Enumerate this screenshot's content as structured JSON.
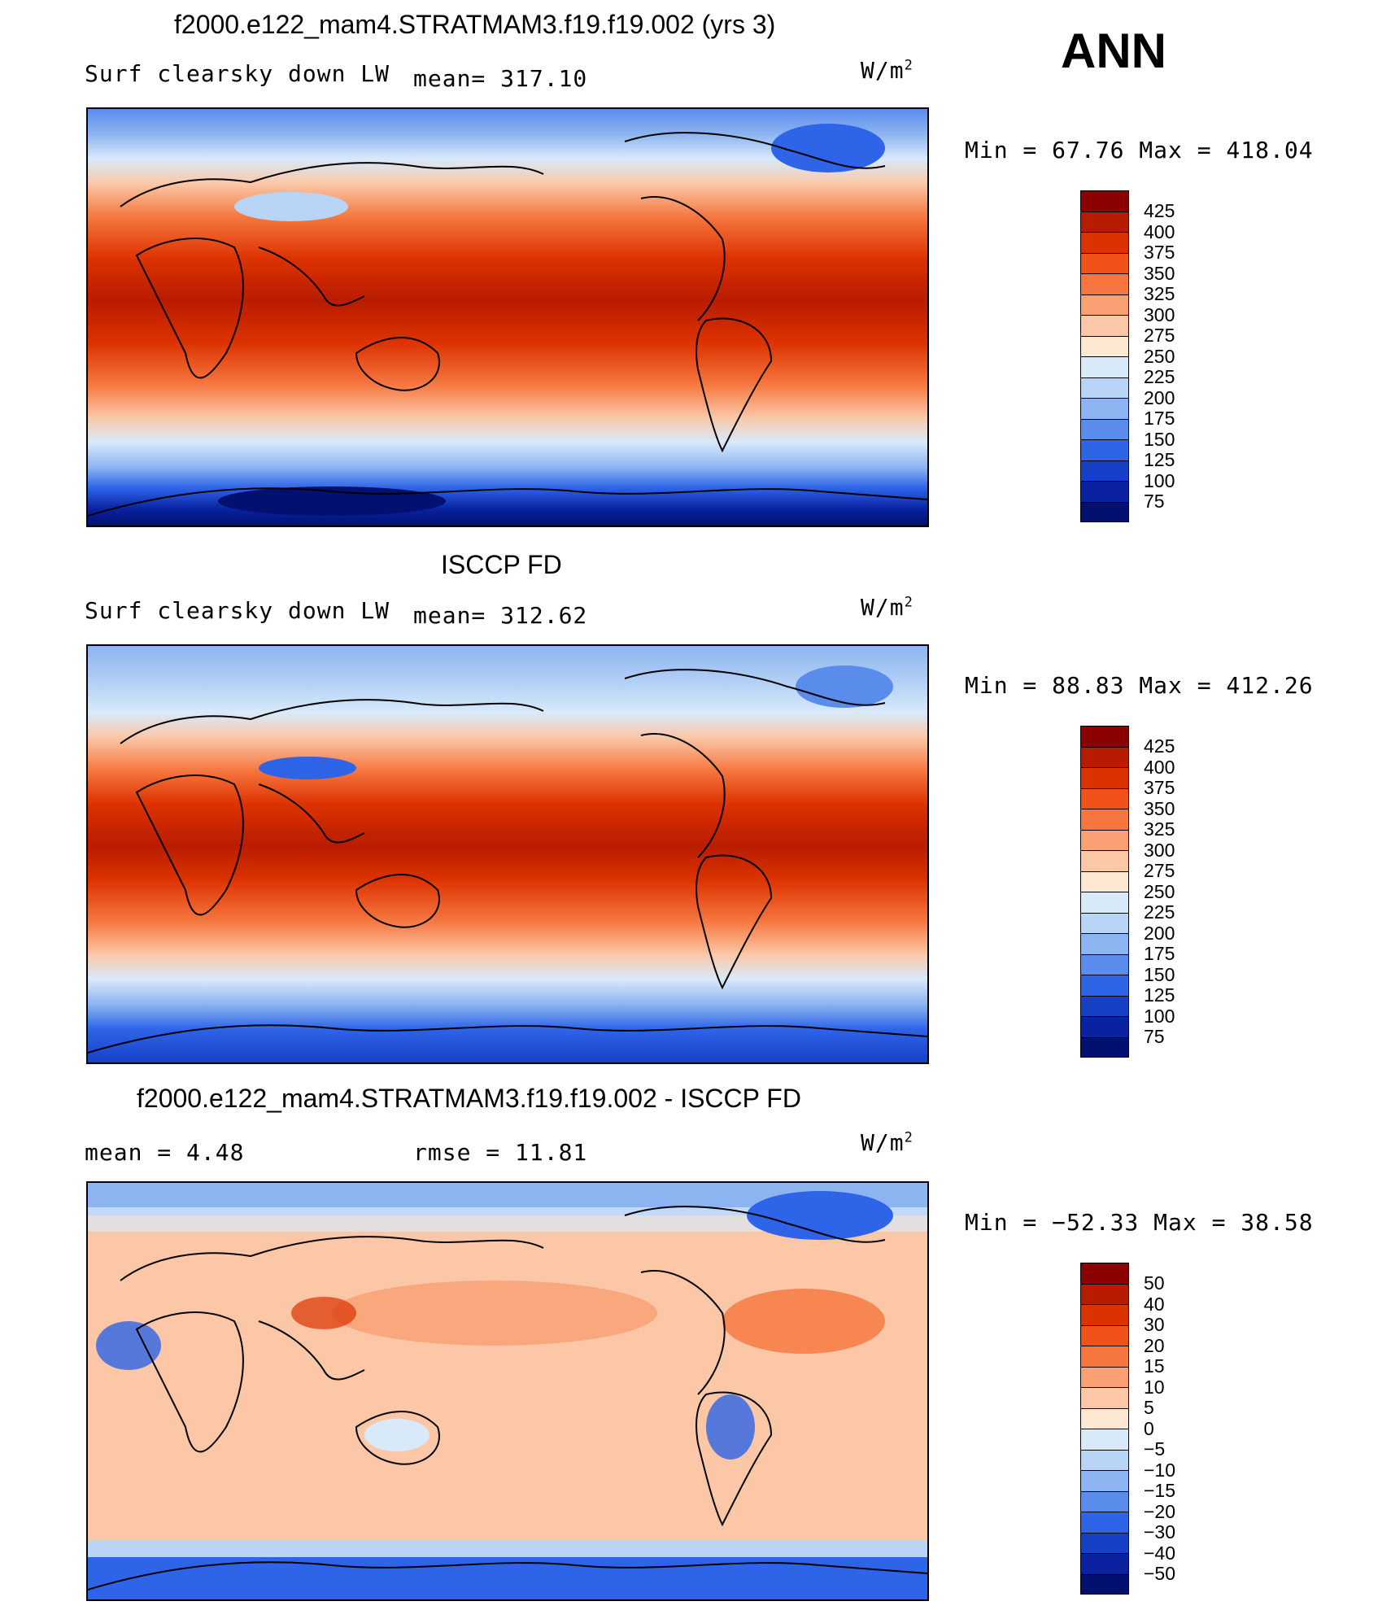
{
  "season": "ANN",
  "unit_base": "W/m",
  "unit_exp": "2",
  "panels": [
    {
      "title": "f2000.e122_mam4.STRATMAM3.f19.f19.002 (yrs 3)",
      "left_label": "Surf clearsky down LW",
      "mid_label": "mean= 317.10",
      "minmax": "Min =   67.76 Max = 418.04",
      "levels": [
        "425",
        "400",
        "375",
        "350",
        "325",
        "300",
        "275",
        "250",
        "225",
        "200",
        "175",
        "150",
        "125",
        "100",
        "75"
      ],
      "colors": [
        "#8b0000",
        "#b81c00",
        "#dc3200",
        "#f0521a",
        "#f6763f",
        "#f9a074",
        "#fbc7a6",
        "#fde8d4",
        "#d8eafa",
        "#b8d4f6",
        "#8cb4f0",
        "#5a8cec",
        "#2e64e8",
        "#1640c8",
        "#0a22a0",
        "#021070"
      ]
    },
    {
      "title": "ISCCP FD",
      "left_label": "Surf clearsky down LW",
      "mid_label": "mean= 312.62",
      "minmax": "Min =   88.83 Max = 412.26",
      "levels": [
        "425",
        "400",
        "375",
        "350",
        "325",
        "300",
        "275",
        "250",
        "225",
        "200",
        "175",
        "150",
        "125",
        "100",
        "75"
      ],
      "colors": [
        "#8b0000",
        "#b81c00",
        "#dc3200",
        "#f0521a",
        "#f6763f",
        "#f9a074",
        "#fbc7a6",
        "#fde8d4",
        "#d8eafa",
        "#b8d4f6",
        "#8cb4f0",
        "#5a8cec",
        "#2e64e8",
        "#1640c8",
        "#0a22a0",
        "#021070"
      ]
    },
    {
      "title": "f2000.e122_mam4.STRATMAM3.f19.f19.002 - ISCCP FD",
      "left_label": "mean =    4.48",
      "mid_label": "rmse =   11.81",
      "minmax": "Min = −52.33 Max =   38.58",
      "levels": [
        "50",
        "40",
        "30",
        "20",
        "15",
        "10",
        "5",
        "0",
        "−5",
        "−10",
        "−15",
        "−20",
        "−30",
        "−40",
        "−50"
      ],
      "colors": [
        "#8b0000",
        "#b81c00",
        "#dc3200",
        "#f0521a",
        "#f6763f",
        "#f9a074",
        "#fbc7a6",
        "#fde8d4",
        "#d8eafa",
        "#b8d4f6",
        "#8cb4f0",
        "#5a8cec",
        "#2e64e8",
        "#1640c8",
        "#0a22a0",
        "#021070"
      ]
    }
  ]
}
